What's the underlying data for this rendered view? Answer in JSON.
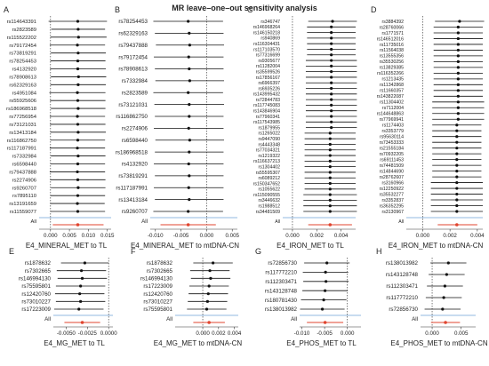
{
  "figure": {
    "title": "MR leave–one–out sensitivity analysis",
    "all_label": "All"
  },
  "chart_data": [
    {
      "type": "forest",
      "panel": "A",
      "xlabel": "E4_MINERAL_MET to TL",
      "xlim": [
        -0.003,
        0.016
      ],
      "xticks": [
        0,
        0.005,
        0.01,
        0.015
      ],
      "xticklabels": [
        "0.000",
        "0.005",
        "0.010",
        "0.015"
      ],
      "labels": [
        "rs114643391",
        "rs2823589",
        "rs115522202",
        "rs79172454",
        "rs73819291",
        "rs78254453",
        "rs4132920",
        "rs78908613",
        "rs62329163",
        "rs4951084",
        "rs55925606",
        "rs186968518",
        "rs77256954",
        "rs73121031",
        "rs13413184",
        "rs116862750",
        "rs117187991",
        "rs7332984",
        "rs6598440",
        "rs79437888",
        "rs2274906",
        "rs9260707",
        "rs7895110",
        "rs13191659",
        "rs11559077"
      ],
      "estimates": [
        0.0072,
        0.0073,
        0.0074,
        0.0071,
        0.0073,
        0.0072,
        0.0072,
        0.0074,
        0.0073,
        0.0071,
        0.0072,
        0.0073,
        0.0071,
        0.0072,
        0.0073,
        0.0072,
        0.0071,
        0.0073,
        0.0072,
        0.0071,
        0.0072,
        0.0073,
        0.0072,
        0.0071,
        0.0072
      ],
      "ci_low": [
        -0.0005,
        0.0002,
        0.0,
        -0.0002,
        0.0001,
        0.0,
        -0.0001,
        0.0001,
        0.0,
        -0.0003,
        -0.0001,
        0.0001,
        -0.0002,
        -0.0001,
        0.0,
        0.0,
        -0.0002,
        0.0001,
        0.0,
        -0.0002,
        -0.0001,
        0.0001,
        0.0,
        -0.0001,
        0.0
      ],
      "ci_high": [
        0.0149,
        0.0144,
        0.0148,
        0.0144,
        0.0146,
        0.0145,
        0.0146,
        0.0147,
        0.0146,
        0.0145,
        0.0145,
        0.0145,
        0.0144,
        0.0145,
        0.0146,
        0.0144,
        0.0144,
        0.0145,
        0.0144,
        0.0144,
        0.0145,
        0.0145,
        0.0144,
        0.0143,
        0.0144
      ],
      "all": {
        "estimate": 0.0072,
        "ci": [
          0.0006,
          0.014
        ]
      },
      "ref_line": 0
    },
    {
      "type": "forest",
      "panel": "B",
      "xlabel": "E4_MINERAL_MET to mtDNA-CN",
      "xlim": [
        -0.011,
        0.006
      ],
      "xticks": [
        -0.01,
        -0.005,
        0,
        0.005
      ],
      "xticklabels": [
        "-0.010",
        "-0.005",
        "0.000",
        "0.005"
      ],
      "labels": [
        "rs78254453",
        "rs62329163",
        "rs79437888",
        "rs79172454",
        "rs78908613",
        "rs7332984",
        "rs2823589",
        "rs73121031",
        "rs116862750",
        "rs2274906",
        "rs6598440",
        "rs186968518",
        "rs4132920",
        "rs73819291",
        "rs117187991",
        "rs13413184",
        "rs9260707"
      ],
      "estimates": [
        -0.0036,
        -0.0034,
        -0.0033,
        -0.0035,
        -0.0034,
        -0.0033,
        -0.0036,
        -0.0034,
        -0.0034,
        -0.0035,
        -0.0033,
        -0.0034,
        -0.0035,
        -0.0034,
        -0.0035,
        -0.0034,
        -0.0036
      ],
      "ci_low": [
        -0.0104,
        -0.0101,
        -0.0099,
        -0.0103,
        -0.0101,
        -0.01,
        -0.0104,
        -0.0102,
        -0.0101,
        -0.0103,
        -0.01,
        -0.0101,
        -0.0103,
        -0.0101,
        -0.0103,
        -0.0101,
        -0.0104
      ],
      "ci_high": [
        0.0032,
        0.0033,
        0.0034,
        0.0033,
        0.0033,
        0.0034,
        0.0032,
        0.0034,
        0.0033,
        0.0033,
        0.0034,
        0.0033,
        0.0033,
        0.0033,
        0.0033,
        0.0033,
        0.0032
      ],
      "all": {
        "estimate": -0.0036,
        "ci": [
          -0.009,
          0.0018
        ]
      },
      "ref_line": 0
    },
    {
      "type": "forest",
      "panel": "C",
      "xlabel": "E4_IRON_MET to TL",
      "xlim": [
        -0.0008,
        0.0052
      ],
      "xticks": [
        0,
        0.002,
        0.004
      ],
      "xticklabels": [
        "0.000",
        "0.002",
        "0.004"
      ],
      "labels": [
        "rs346747",
        "rs146968264",
        "rs146150218",
        "rs940869",
        "rs116304431",
        "rs117103570",
        "rs77316699",
        "rs9305677",
        "rs11282004",
        "rs35599526",
        "rs17856167",
        "rs6966397",
        "rs6935226",
        "rs143995432",
        "rs72844783",
        "rs117745083",
        "rs143846904",
        "rs77960341",
        "rs117543985",
        "rs1879955",
        "rs1265022",
        "rs9447090",
        "rs4443348",
        "rs77034321",
        "rs1219322",
        "rs116637213",
        "rs1304402",
        "rs55595307",
        "rs6089212",
        "rs150347652",
        "rs1055622",
        "rs115090555",
        "rs3446632",
        "rs1988512",
        "rs34481509"
      ],
      "estimates": [
        0.0033,
        0.0032,
        0.0032,
        0.0032,
        0.0032,
        0.0032,
        0.0032,
        0.0032,
        0.0032,
        0.0032,
        0.0032,
        0.0032,
        0.0032,
        0.0032,
        0.0032,
        0.0032,
        0.0032,
        0.0032,
        0.0032,
        0.0032,
        0.0031,
        0.0031,
        0.0031,
        0.0031,
        0.0031,
        0.0031,
        0.0031,
        0.0031,
        0.0031,
        0.0031,
        0.0031,
        0.0031,
        0.0031,
        0.0031,
        0.0031
      ],
      "ci_low": [
        0.0013,
        0.0012,
        0.0012,
        0.0012,
        0.0012,
        0.0012,
        0.0012,
        0.0011,
        0.0011,
        0.0011,
        0.0011,
        0.0011,
        0.0011,
        0.0011,
        0.0011,
        0.0011,
        0.0011,
        0.0011,
        0.0011,
        0.0011,
        0.001,
        0.001,
        0.001,
        0.001,
        0.001,
        0.001,
        0.001,
        0.001,
        0.001,
        0.001,
        0.001,
        0.0009,
        0.0009,
        0.0009,
        0.0009
      ],
      "ci_high": [
        0.0053,
        0.0052,
        0.0052,
        0.0052,
        0.0052,
        0.0052,
        0.0052,
        0.0053,
        0.0053,
        0.0053,
        0.0053,
        0.0053,
        0.0053,
        0.0053,
        0.0053,
        0.0053,
        0.0053,
        0.0053,
        0.0053,
        0.0053,
        0.0052,
        0.0052,
        0.0052,
        0.0052,
        0.0052,
        0.0052,
        0.0052,
        0.0052,
        0.0052,
        0.0052,
        0.0052,
        0.0053,
        0.0053,
        0.0053,
        0.0053
      ],
      "all": {
        "estimate": 0.0031,
        "ci": [
          0.0013,
          0.0049
        ]
      },
      "ref_line": 0
    },
    {
      "type": "forest",
      "panel": "D",
      "xlabel": "E4_IRON_MET to mtDNA-CN",
      "xlim": [
        -0.0012,
        0.0044
      ],
      "xticks": [
        0,
        0.002,
        0.004
      ],
      "xticklabels": [
        "0.000",
        "0.002",
        "0.004"
      ],
      "labels": [
        "rs3884392",
        "rs28760066",
        "rs1771571",
        "rs146512016",
        "rs11735016",
        "rs11564038",
        "rs13555356",
        "rs35530256",
        "rs13829385",
        "rs116352266",
        "rs1213435",
        "rs11342868",
        "rs11660357",
        "rs143822087",
        "rs11304402",
        "rs7112004",
        "rs144648863",
        "rs77969941",
        "rs1174403",
        "rs3353779",
        "rs95630114",
        "rs73453333",
        "rs21555184",
        "rs70932205",
        "rs69111453",
        "rs74481509",
        "rs14844690",
        "rs28762607",
        "rs3160966",
        "rs12250922",
        "rs35532277",
        "rs3352837",
        "rs36352295",
        "rs3130967"
      ],
      "estimates": [
        0.0027,
        0.0026,
        0.0026,
        0.0026,
        0.0026,
        0.0026,
        0.0026,
        0.0026,
        0.0026,
        0.0026,
        0.0026,
        0.0026,
        0.0026,
        0.0026,
        0.0026,
        0.0026,
        0.0026,
        0.0026,
        0.0025,
        0.0025,
        0.0025,
        0.0025,
        0.0025,
        0.0025,
        0.0025,
        0.0025,
        0.0025,
        0.0025,
        0.0025,
        0.0025,
        0.0025,
        0.0025,
        0.0025,
        0.0025
      ],
      "ci_low": [
        0.0009,
        0.0008,
        0.0008,
        0.0008,
        0.0008,
        0.0008,
        0.0008,
        0.0008,
        0.0008,
        0.0008,
        0.0008,
        0.0008,
        0.0008,
        0.0008,
        0.0007,
        0.0007,
        0.0007,
        0.0007,
        0.0007,
        0.0007,
        0.0007,
        0.0007,
        0.0007,
        0.0007,
        0.0007,
        0.0007,
        0.0007,
        0.0007,
        0.0006,
        0.0006,
        0.0006,
        0.0006,
        0.0006,
        0.0006
      ],
      "ci_high": [
        0.0045,
        0.0044,
        0.0044,
        0.0044,
        0.0044,
        0.0044,
        0.0044,
        0.0044,
        0.0044,
        0.0044,
        0.0044,
        0.0044,
        0.0044,
        0.0044,
        0.0045,
        0.0045,
        0.0045,
        0.0045,
        0.0043,
        0.0043,
        0.0043,
        0.0043,
        0.0043,
        0.0043,
        0.0043,
        0.0043,
        0.0043,
        0.0043,
        0.0044,
        0.0044,
        0.0044,
        0.0044,
        0.0044,
        0.0044
      ],
      "all": {
        "estimate": 0.0025,
        "ci": [
          0.0011,
          0.004
        ]
      },
      "ref_line": 0
    },
    {
      "type": "forest",
      "panel": "E",
      "xlabel": "E4_MG_MET to TL",
      "xlim": [
        -0.0065,
        0.0005
      ],
      "xticks": [
        -0.005,
        -0.0025,
        0
      ],
      "xticklabels": [
        "-0.0050",
        "-0.0025",
        "0.0000"
      ],
      "labels": [
        "rs1878632",
        "rs7302665",
        "rs146994130",
        "rs75595801",
        "rs12420760",
        "rs73010227",
        "rs17223009"
      ],
      "estimates": [
        -0.0028,
        -0.0032,
        -0.0031,
        -0.0033,
        -0.0034,
        -0.0033,
        -0.0035
      ],
      "ci_low": [
        -0.0056,
        -0.0061,
        -0.006,
        -0.0062,
        -0.0063,
        -0.0062,
        -0.0064
      ],
      "ci_high": [
        0.0,
        -0.0003,
        -0.0002,
        -0.0004,
        -0.0005,
        -0.0004,
        -0.0006
      ],
      "all": {
        "estimate": -0.0031,
        "ci": [
          -0.0052,
          -0.001
        ]
      },
      "ref_line": 0
    },
    {
      "type": "forest",
      "panel": "F",
      "xlabel": "E4_MG_MET to mtDNA-CN",
      "xlim": [
        -0.0035,
        0.0045
      ],
      "xticks": [
        0,
        0.002,
        0.004
      ],
      "xticklabels": [
        "0.000",
        "0.002",
        "0.004"
      ],
      "labels": [
        "rs1878632",
        "rs7302665",
        "rs146994130",
        "rs17223009",
        "rs12420760",
        "rs73010227",
        "rs75595801"
      ],
      "estimates": [
        0.0013,
        0.0009,
        0.001,
        0.0008,
        0.0007,
        0.0006,
        0.0005
      ],
      "ci_low": [
        -0.0012,
        -0.0016,
        -0.0015,
        -0.0017,
        -0.0018,
        -0.0019,
        -0.002
      ],
      "ci_high": [
        0.0038,
        0.0034,
        0.0035,
        0.0033,
        0.0032,
        0.0031,
        0.003
      ],
      "all": {
        "estimate": 0.0008,
        "ci": [
          -0.0012,
          0.0028
        ]
      },
      "ref_line": 0
    },
    {
      "type": "forest",
      "panel": "G",
      "xlabel": "E4_PHOS_MET to TL",
      "xlim": [
        -0.0105,
        0.003
      ],
      "xticks": [
        -0.01,
        -0.005,
        0
      ],
      "xticklabels": [
        "-0.010",
        "-0.005",
        "0.000"
      ],
      "labels": [
        "rs72856730",
        "rs117772210",
        "rs112303471",
        "rs143128748",
        "rs180781430",
        "rs138013982"
      ],
      "estimates": [
        -0.0045,
        -0.0048,
        -0.0047,
        -0.0049,
        -0.0052,
        -0.0055
      ],
      "ci_low": [
        -0.0095,
        -0.0098,
        -0.0097,
        -0.0099,
        -0.0102,
        -0.0104
      ],
      "ci_high": [
        0.0005,
        0.0002,
        0.0003,
        0.0001,
        -0.0002,
        -0.0006
      ],
      "all": {
        "estimate": -0.0049,
        "ci": [
          -0.0089,
          -0.0009
        ]
      },
      "ref_line": 0
    },
    {
      "type": "forest",
      "panel": "H",
      "xlabel": "E4_PHOS_MET to mtDNA-CN",
      "xlim": [
        -0.002,
        0.0075
      ],
      "xticks": [
        0,
        0.005
      ],
      "xticklabels": [
        "0.000",
        "0.005"
      ],
      "labels": [
        "rs138013982",
        "rs143128748",
        "rs112303471",
        "rs117772210",
        "rs72856730"
      ],
      "estimates": [
        0.0028,
        0.0025,
        0.0022,
        0.002,
        0.0018
      ],
      "ci_low": [
        -0.0003,
        -0.0006,
        -0.0009,
        -0.0011,
        -0.0013
      ],
      "ci_high": [
        0.0059,
        0.0056,
        0.0053,
        0.0051,
        0.0049
      ],
      "all": {
        "estimate": 0.0023,
        "ci": [
          -0.0002,
          0.0048
        ]
      },
      "ref_line": 0
    }
  ]
}
